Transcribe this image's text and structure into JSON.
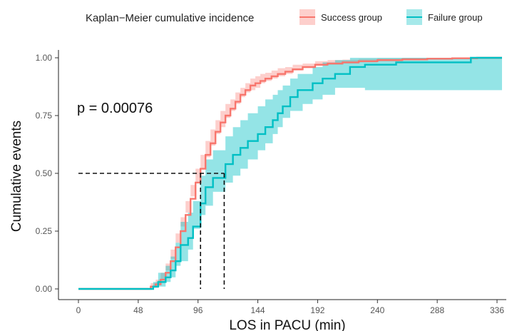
{
  "chart_data": {
    "type": "line",
    "subtype": "step",
    "legend": {
      "title": "Kaplan−Meier cumulative incidence",
      "position": "top",
      "entries": [
        {
          "label": "Success group",
          "color": "#F8766D"
        },
        {
          "label": "Failure group",
          "color": "#00BFC4"
        }
      ]
    },
    "xlabel": "LOS in PACU (min)",
    "ylabel": "Cumulative events",
    "xlim": [
      0,
      340
    ],
    "ylim": [
      0,
      1.0
    ],
    "x_ticks": [
      0,
      48,
      96,
      144,
      192,
      240,
      288,
      336
    ],
    "x_tick_labels": [
      "0",
      "48",
      "96",
      "144",
      "192",
      "240",
      "288",
      "336"
    ],
    "y_ticks": [
      0,
      0.25,
      0.5,
      0.75,
      1.0
    ],
    "y_tick_labels": [
      "0.00",
      "0.25",
      "0.50",
      "0.75",
      "1.00"
    ],
    "annotation": "p = 0.00076",
    "median_lines": {
      "y": 0.5,
      "x": [
        98,
        117
      ]
    },
    "grid": false,
    "series": [
      {
        "name": "Success group",
        "color": "#F8766D",
        "band_color": "#F8766D",
        "x": [
          0,
          48,
          58,
          62,
          66,
          70,
          74,
          78,
          82,
          86,
          90,
          94,
          98,
          102,
          106,
          110,
          114,
          118,
          122,
          126,
          130,
          134,
          138,
          142,
          146,
          150,
          155,
          160,
          166,
          172,
          180,
          190,
          200,
          212,
          225,
          240,
          260,
          280,
          300,
          320,
          340
        ],
        "y": [
          0,
          0,
          0.01,
          0.02,
          0.04,
          0.07,
          0.12,
          0.18,
          0.25,
          0.32,
          0.39,
          0.46,
          0.52,
          0.58,
          0.63,
          0.68,
          0.72,
          0.75,
          0.78,
          0.81,
          0.84,
          0.86,
          0.88,
          0.89,
          0.9,
          0.91,
          0.92,
          0.93,
          0.94,
          0.95,
          0.96,
          0.97,
          0.975,
          0.98,
          0.985,
          0.99,
          0.993,
          0.996,
          0.998,
          1.0,
          1.0
        ],
        "lower": [
          0,
          0,
          0,
          0.005,
          0.02,
          0.04,
          0.08,
          0.13,
          0.2,
          0.27,
          0.33,
          0.4,
          0.46,
          0.52,
          0.57,
          0.62,
          0.67,
          0.7,
          0.74,
          0.77,
          0.8,
          0.83,
          0.85,
          0.86,
          0.87,
          0.89,
          0.9,
          0.91,
          0.92,
          0.93,
          0.945,
          0.955,
          0.965,
          0.97,
          0.975,
          0.98,
          0.985,
          0.99,
          0.993,
          0.995,
          0.995
        ],
        "upper": [
          0,
          0,
          0.025,
          0.04,
          0.07,
          0.11,
          0.17,
          0.24,
          0.31,
          0.38,
          0.45,
          0.52,
          0.58,
          0.64,
          0.69,
          0.73,
          0.77,
          0.8,
          0.82,
          0.85,
          0.87,
          0.89,
          0.91,
          0.92,
          0.93,
          0.935,
          0.945,
          0.955,
          0.96,
          0.97,
          0.975,
          0.985,
          0.99,
          0.992,
          0.995,
          0.998,
          1.0,
          1.0,
          1.0,
          1.0,
          1.0
        ]
      },
      {
        "name": "Failure group",
        "color": "#00BFC4",
        "band_color": "#00BFC4",
        "x": [
          0,
          50,
          60,
          64,
          70,
          74,
          78,
          82,
          88,
          92,
          98,
          102,
          108,
          118,
          124,
          130,
          136,
          144,
          150,
          156,
          160,
          164,
          170,
          176,
          180,
          188,
          196,
          206,
          218,
          230,
          255,
          285,
          315,
          340
        ],
        "y": [
          0,
          0,
          0.01,
          0.03,
          0.05,
          0.08,
          0.12,
          0.19,
          0.22,
          0.27,
          0.37,
          0.44,
          0.48,
          0.54,
          0.58,
          0.61,
          0.64,
          0.67,
          0.7,
          0.73,
          0.76,
          0.79,
          0.83,
          0.86,
          0.86,
          0.89,
          0.91,
          0.93,
          0.96,
          0.97,
          0.98,
          0.98,
          1.0,
          1.0
        ],
        "lower": [
          0,
          0,
          0,
          0.005,
          0.01,
          0.03,
          0.05,
          0.1,
          0.12,
          0.17,
          0.26,
          0.32,
          0.36,
          0.42,
          0.46,
          0.49,
          0.52,
          0.56,
          0.6,
          0.63,
          0.67,
          0.7,
          0.74,
          0.77,
          0.77,
          0.8,
          0.82,
          0.84,
          0.87,
          0.87,
          0.86,
          0.86,
          0.86,
          0.86
        ],
        "upper": [
          0,
          0,
          0.03,
          0.07,
          0.1,
          0.14,
          0.2,
          0.29,
          0.33,
          0.38,
          0.49,
          0.56,
          0.6,
          0.66,
          0.7,
          0.73,
          0.76,
          0.79,
          0.82,
          0.84,
          0.86,
          0.88,
          0.91,
          0.93,
          0.93,
          0.96,
          0.98,
          0.99,
          1.0,
          1.0,
          1.0,
          1.0,
          1.0,
          1.0
        ]
      }
    ]
  }
}
